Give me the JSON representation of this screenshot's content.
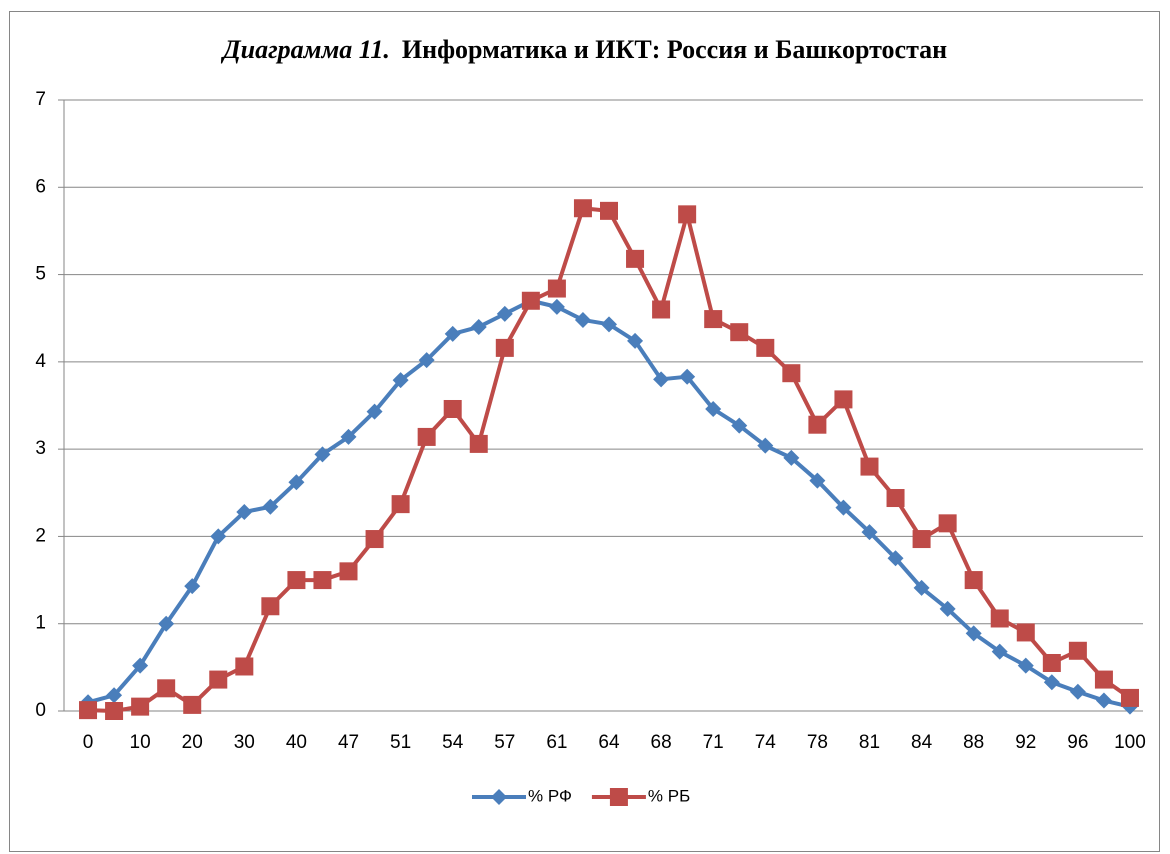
{
  "chart_data": {
    "type": "line",
    "title_label": "Диаграмма 11.",
    "title": "Информатика и ИКТ: Россия и Башкортостан",
    "categories": [
      "0",
      null,
      "10",
      null,
      "20",
      null,
      "30",
      null,
      "40",
      null,
      "47",
      null,
      "51",
      null,
      "54",
      null,
      "57",
      null,
      "61",
      null,
      "64",
      null,
      "68",
      null,
      "71",
      null,
      "74",
      null,
      "78",
      null,
      "81",
      null,
      "84",
      null,
      "88",
      null,
      "92",
      null,
      "96",
      null,
      "100"
    ],
    "series": [
      {
        "name": "% РФ",
        "color": "#4a7ebb",
        "marker": "diamond",
        "values": [
          0.1,
          0.18,
          0.52,
          1.0,
          1.43,
          2.0,
          2.28,
          2.34,
          2.62,
          2.94,
          3.14,
          3.43,
          3.79,
          4.02,
          4.32,
          4.4,
          4.55,
          4.7,
          4.63,
          4.48,
          4.43,
          4.24,
          3.8,
          3.83,
          3.46,
          3.27,
          3.04,
          2.9,
          2.64,
          2.33,
          2.05,
          1.75,
          1.41,
          1.17,
          0.89,
          0.68,
          0.52,
          0.33,
          0.22,
          0.12,
          0.05
        ]
      },
      {
        "name": "% РБ",
        "color": "#be4b48",
        "marker": "square",
        "values": [
          0.01,
          0.0,
          0.05,
          0.26,
          0.07,
          0.36,
          0.51,
          1.2,
          1.5,
          1.5,
          1.6,
          1.97,
          2.37,
          3.14,
          3.46,
          3.06,
          4.16,
          4.7,
          4.84,
          5.76,
          5.73,
          5.18,
          4.6,
          5.69,
          4.49,
          4.34,
          4.16,
          3.87,
          3.28,
          3.57,
          2.8,
          2.44,
          1.97,
          2.15,
          1.5,
          1.06,
          0.9,
          0.55,
          0.69,
          0.36,
          0.15
        ]
      }
    ],
    "ylim": [
      0,
      7
    ],
    "yticks": [
      0,
      1,
      2,
      3,
      4,
      5,
      6,
      7
    ],
    "grid": true,
    "legend": "bottom"
  }
}
